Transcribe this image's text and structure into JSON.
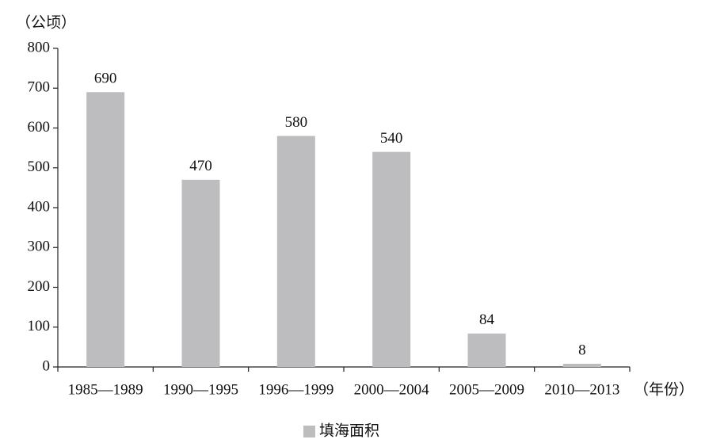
{
  "chart_data": {
    "type": "bar",
    "y_axis_label": "（公顷）",
    "x_axis_label": "（年份）",
    "categories": [
      "1985—1989",
      "1990—1995",
      "1996—1999",
      "2000—2004",
      "2005—2009",
      "2010—2013"
    ],
    "series": [
      {
        "name": "填海面积",
        "color": "#bdbdbf",
        "values": [
          690,
          470,
          580,
          540,
          84,
          8
        ]
      }
    ],
    "ylim": [
      0,
      800
    ],
    "yticks": [
      0,
      100,
      200,
      300,
      400,
      500,
      600,
      700,
      800
    ],
    "grid": false,
    "legend": "bottom"
  }
}
